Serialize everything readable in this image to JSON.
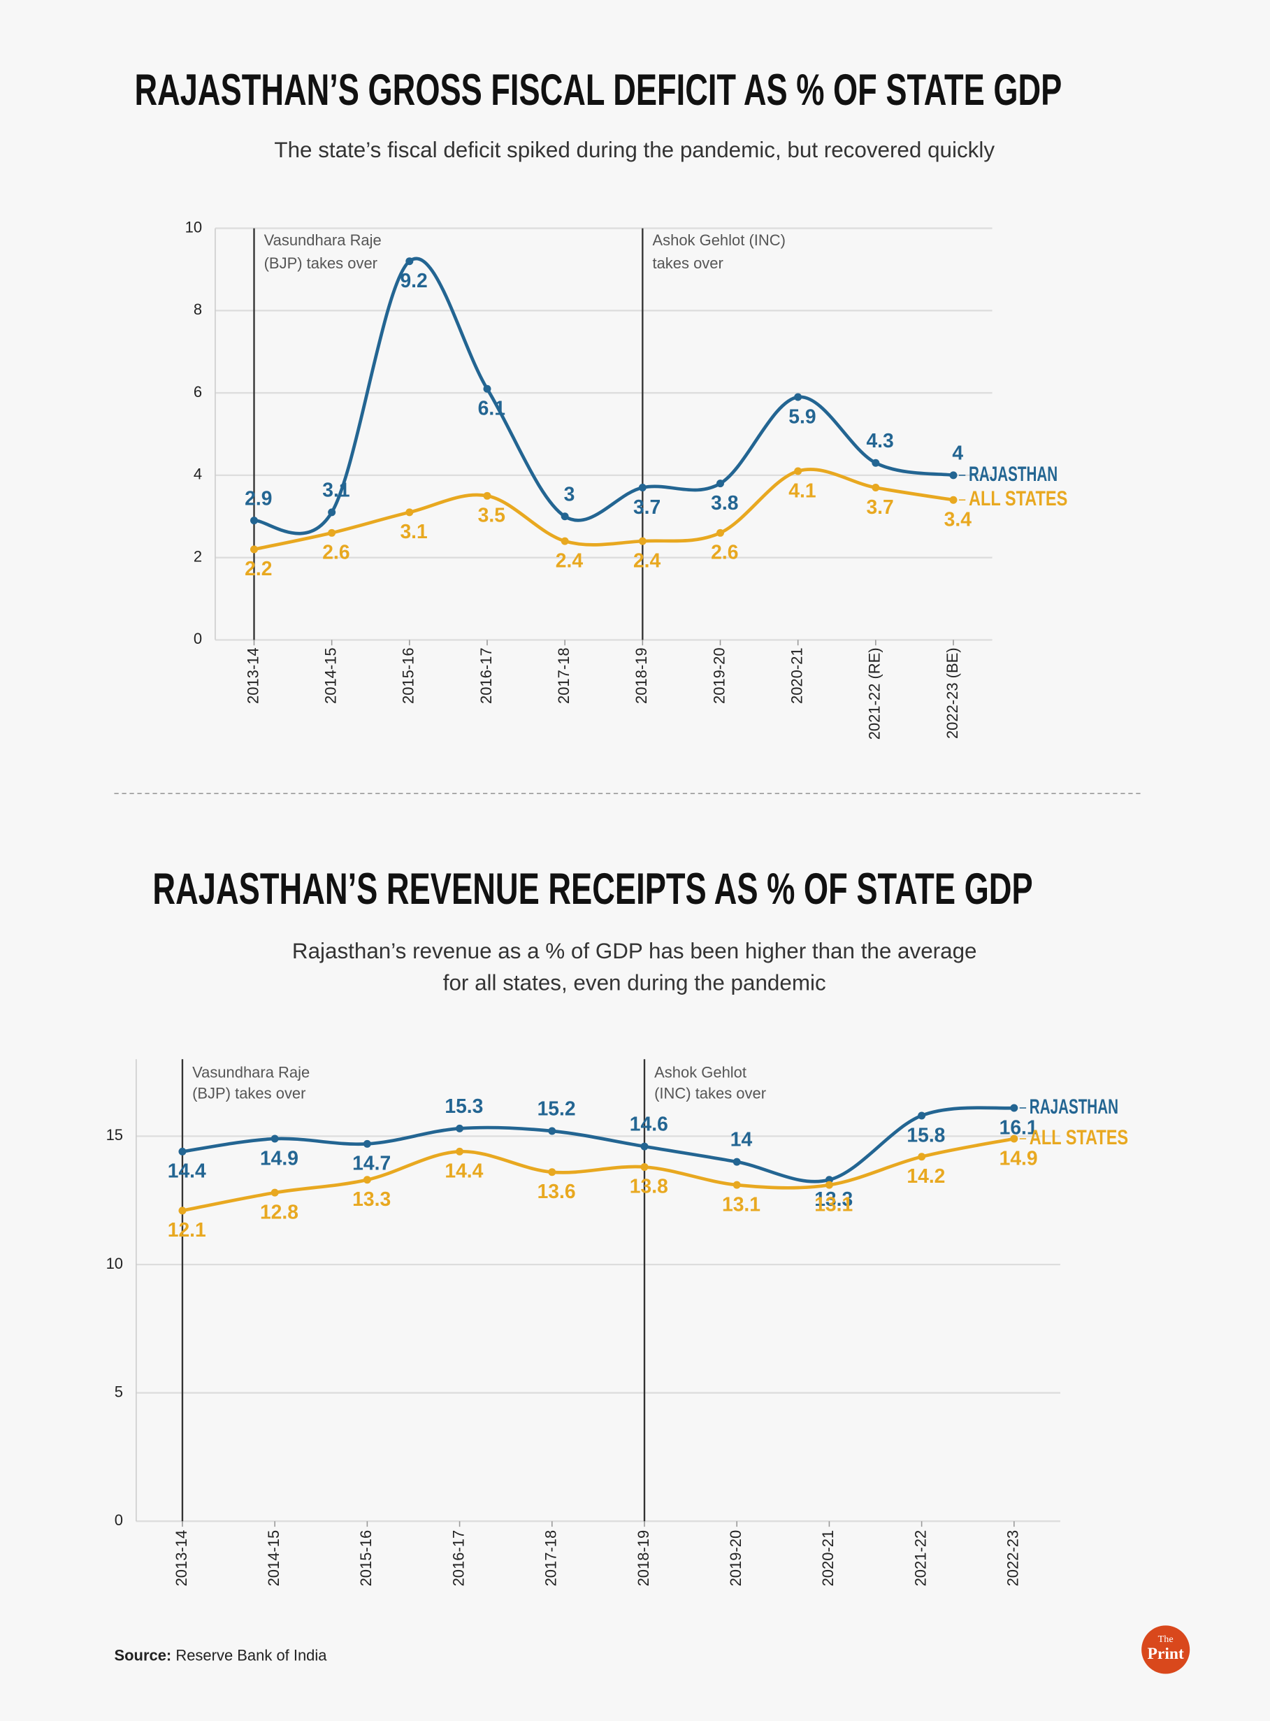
{
  "chart_data": [
    {
      "type": "line",
      "title": "RAJASTHAN’S GROSS FISCAL DEFICIT AS % OF STATE GDP",
      "subtitle": [
        "The state’s fiscal deficit spiked during the pandemic, but recovered quickly"
      ],
      "categories": [
        "2013-14",
        "2014-15",
        "2015-16",
        "2016-17",
        "2017-18",
        "2018-19",
        "2019-20",
        "2020-21",
        "2021-22 (RE)",
        "2022-23 (BE)"
      ],
      "series": [
        {
          "name": "RAJASTHAN",
          "color": "#236592",
          "values": [
            2.9,
            3.1,
            9.2,
            6.1,
            3,
            3.7,
            3.8,
            5.9,
            4.3,
            4
          ]
        },
        {
          "name": "ALL STATES",
          "color": "#e8a820",
          "values": [
            2.2,
            2.6,
            3.1,
            3.5,
            2.4,
            2.4,
            2.6,
            4.1,
            3.7,
            3.4
          ]
        }
      ],
      "ylim": [
        0,
        10
      ],
      "yticks": [
        0,
        2,
        4,
        6,
        8,
        10
      ],
      "grid": true,
      "annotations": [
        {
          "category": "2013-14",
          "text": [
            "Vasundhara Raje",
            "(BJP) takes over"
          ]
        },
        {
          "category": "2018-19",
          "text": [
            "Ashok Gehlot (INC)",
            "takes over"
          ]
        }
      ]
    },
    {
      "type": "line",
      "title": "RAJASTHAN’S REVENUE RECEIPTS AS % OF STATE GDP",
      "subtitle": [
        "Rajasthan’s revenue as a % of GDP has been higher than the average",
        "for all states, even during the pandemic"
      ],
      "categories": [
        "2013-14",
        "2014-15",
        "2015-16",
        "2016-17",
        "2017-18",
        "2018-19",
        "2019-20",
        "2020-21",
        "2021-22",
        "2022-23"
      ],
      "series": [
        {
          "name": "RAJASTHAN",
          "color": "#236592",
          "values": [
            14.4,
            14.9,
            14.7,
            15.3,
            15.2,
            14.6,
            14,
            13.3,
            15.8,
            16.1
          ]
        },
        {
          "name": "ALL STATES",
          "color": "#e8a820",
          "values": [
            12.1,
            12.8,
            13.3,
            14.4,
            13.6,
            13.8,
            13.1,
            13.1,
            14.2,
            14.9
          ]
        }
      ],
      "ylim": [
        0,
        18
      ],
      "yticks": [
        0,
        5,
        10,
        15
      ],
      "grid": true,
      "annotations": [
        {
          "category": "2013-14",
          "text": [
            "Vasundhara Raje",
            "(BJP) takes over"
          ]
        },
        {
          "category": "2018-19",
          "text": [
            "Ashok Gehlot",
            "(INC) takes over"
          ]
        }
      ]
    }
  ],
  "source": {
    "label": "Source:",
    "text": "Reserve Bank of India"
  },
  "logo": [
    "The",
    "Print"
  ]
}
